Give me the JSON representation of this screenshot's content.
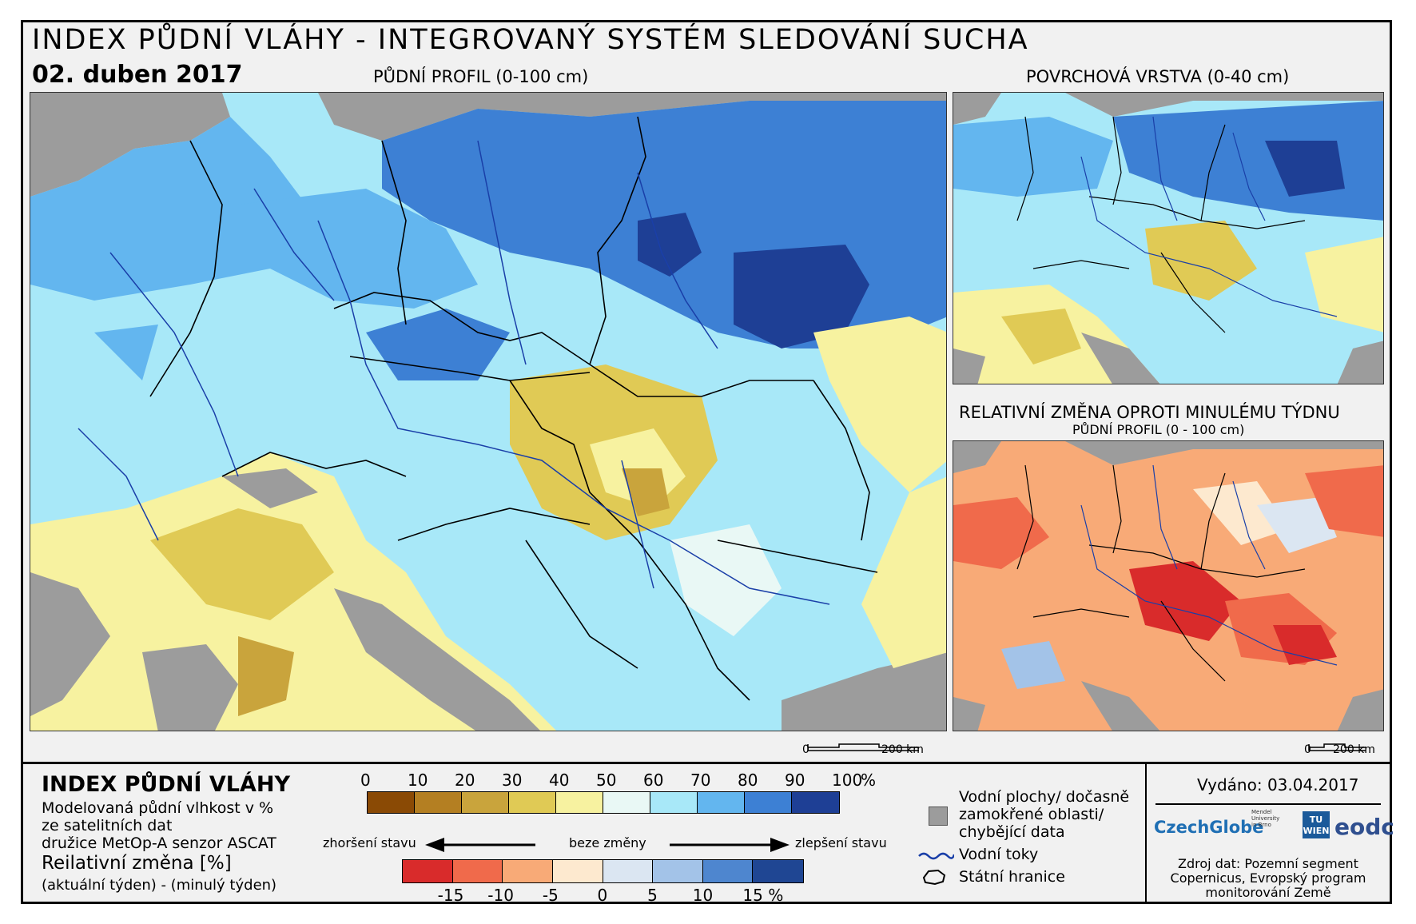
{
  "header": {
    "title": "INDEX PŮDNÍ VLÁHY - INTEGROVANÝ SYSTÉM SLEDOVÁNÍ SUCHA",
    "date": "02. duben 2017"
  },
  "maps": {
    "main_title": "PŮDNÍ PROFIL (0-100 cm)",
    "surface_title": "POVRCHOVÁ VRSTVA (0-40 cm)",
    "change_title": "RELATIVNÍ ZMĚNA OPROTI MINULÉMU TÝDNU",
    "change_subtitle": "PŮDNÍ PROFIL (0 - 100 cm)",
    "main_scale": {
      "zero": "0",
      "dist": "200 km"
    },
    "small_scale": {
      "zero": "0",
      "dist": "200 km"
    }
  },
  "legend": {
    "heading": "INDEX PŮDNÍ VLÁHY",
    "desc_lines": [
      "Modelovaná půdní vlhkost v %",
      "ze satelitních dat",
      "družice MetOp-A senzor ASCAT"
    ],
    "change_heading": "Reilativní změna [%]",
    "change_note": "(aktuální týden) - (minulý týden)",
    "index_ticks": [
      "0",
      "10",
      "20",
      "30",
      "40",
      "50",
      "60",
      "70",
      "80",
      "90",
      "100"
    ],
    "index_unit": "%",
    "index_colors": [
      "#8a4a05",
      "#b47f22",
      "#c9a43c",
      "#e0ca55",
      "#f7f2a0",
      "#e9f8f5",
      "#a8e8f8",
      "#63b6ef",
      "#3d80d4",
      "#1e3f95"
    ],
    "arrow_left": "zhoršení stavu",
    "arrow_mid": "beze změny",
    "arrow_right": "zlepšení stavu",
    "change_ticks": [
      "-15",
      "-10",
      "-5",
      "0",
      "5",
      "10",
      "15"
    ],
    "change_unit": "%",
    "change_colors": [
      "#d92b2b",
      "#f06a4b",
      "#f8aa77",
      "#fde9cf",
      "#dbe6f2",
      "#a3c3e8",
      "#4e86cf",
      "#1f4693"
    ],
    "water_label_lines": [
      "Vodní plochy/ dočasně",
      "zamokřené oblasti/",
      "chybějící data"
    ],
    "rivers_label": "Vodní toky",
    "borders_label": "Státní hranice"
  },
  "footer": {
    "issued": "Vydáno: 03.04.2017",
    "logos": [
      "CzechGlobe",
      "Mendel University in Brno",
      "TU WIEN",
      "eodc"
    ],
    "source_lines": [
      "Zdroj dat: Pozemní segment",
      "Copernicus, Evropský program",
      "monitorování Země"
    ]
  },
  "colors": {
    "sea": "#9c9c9c",
    "frame_bg": "#f1f1f1",
    "river": "#1a3fa8",
    "border": "#000000"
  }
}
